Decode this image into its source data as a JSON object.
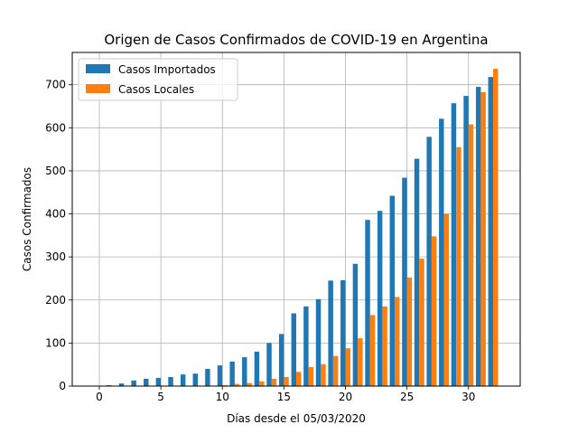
{
  "chart_data": {
    "type": "bar",
    "title": "Origen de Casos Confirmados de COVID-19 en Argentina",
    "xlabel": "Días desde el 05/03/2020",
    "ylabel": "Casos Confirmados",
    "xlim": [
      -2.2,
      34.2
    ],
    "ylim": [
      0,
      775
    ],
    "xticks": [
      0,
      5,
      10,
      15,
      20,
      25,
      30
    ],
    "yticks": [
      0,
      100,
      200,
      300,
      400,
      500,
      600,
      700
    ],
    "grid": true,
    "legend_position": "upper-left",
    "bar_width": 0.4,
    "x": [
      0,
      1,
      2,
      3,
      4,
      5,
      6,
      7,
      8,
      9,
      10,
      11,
      12,
      13,
      14,
      15,
      16,
      17,
      18,
      19,
      20,
      21,
      22,
      23,
      24,
      25,
      26,
      27,
      28,
      29,
      30,
      31,
      32
    ],
    "series": [
      {
        "name": "Casos Importados",
        "color": "#1f77b4",
        "values": [
          1,
          2,
          6,
          13,
          17,
          19,
          21,
          27,
          29,
          40,
          48,
          57,
          67,
          80,
          100,
          121,
          169,
          185,
          202,
          245,
          246,
          284,
          386,
          407,
          442,
          484,
          528,
          579,
          621,
          657,
          674,
          695,
          718
        ]
      },
      {
        "name": "Casos Locales",
        "color": "#ff7f0e",
        "values": [
          0,
          0,
          0,
          0,
          0,
          0,
          0,
          0,
          0,
          0,
          2,
          5,
          7,
          11,
          17,
          21,
          33,
          44,
          51,
          70,
          88,
          111,
          165,
          185,
          207,
          252,
          296,
          348,
          400,
          555,
          608,
          683,
          737
        ]
      }
    ]
  }
}
